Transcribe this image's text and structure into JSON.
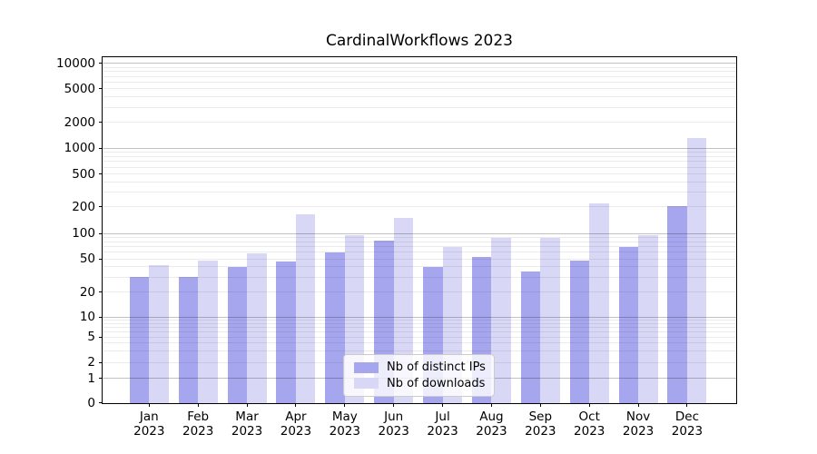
{
  "title": "CardinalWorkflows 2023",
  "chart_data": {
    "type": "bar",
    "title": "CardinalWorkflows 2023",
    "categories": [
      "Jan",
      "Feb",
      "Mar",
      "Apr",
      "May",
      "Jun",
      "Jul",
      "Aug",
      "Sep",
      "Oct",
      "Nov",
      "Dec"
    ],
    "year": "2023",
    "series": [
      {
        "name": "Nb of distinct IPs",
        "color": "#a6a6ef",
        "values": [
          30,
          30,
          40,
          46,
          60,
          83,
          40,
          52,
          35,
          48,
          70,
          205
        ]
      },
      {
        "name": "Nb of downloads",
        "color": "#d8d8f6",
        "values": [
          42,
          48,
          58,
          165,
          96,
          150,
          70,
          88,
          88,
          220,
          95,
          1300
        ]
      }
    ],
    "yticks": [
      0,
      1,
      2,
      5,
      10,
      20,
      50,
      100,
      200,
      500,
      1000,
      2000,
      5000,
      10000
    ],
    "yscale": "symlog",
    "ylim": [
      0,
      12000
    ],
    "grid": "on",
    "legend_position": "lower center",
    "xlabel": "",
    "ylabel": ""
  },
  "colors": {
    "background": "#ffffff",
    "spine": "#000000",
    "major_grid": "#c7c7c7",
    "minor_grid": "#ebebeb"
  }
}
